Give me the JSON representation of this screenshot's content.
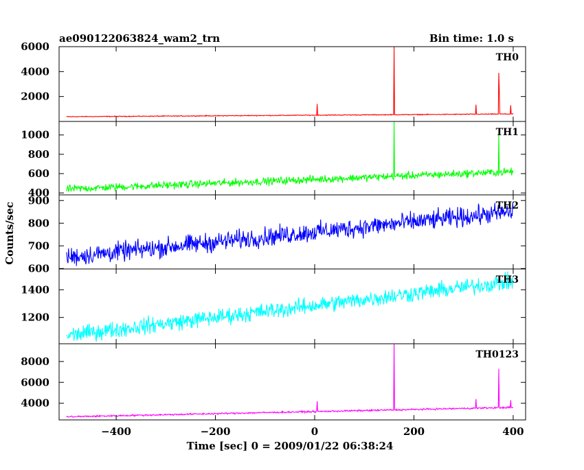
{
  "header": {
    "title": "ae090122063824_wam2_trn",
    "bin_time": "Bin time: 1.0 s"
  },
  "chart_data": {
    "type": "line",
    "xlabel": "Time [sec] 0 = 2009/01/22 06:38:24",
    "ylabel": "Counts/sec",
    "xlim": [
      -515,
      425
    ],
    "xticks": [
      -400,
      -200,
      0,
      200,
      400
    ],
    "xtick_labels": [
      "−400",
      "−200",
      "0",
      "200",
      "400"
    ],
    "x_range": [
      -500,
      400
    ],
    "panels": [
      {
        "name": "TH0",
        "color": "#ff0000",
        "ylim": [
          0,
          6000
        ],
        "yticks": [
          2000,
          4000,
          6000
        ],
        "ytick_labels": [
          "2000",
          "4000",
          "6000"
        ],
        "baseline_start": 380,
        "baseline_end": 600,
        "noise": 25,
        "spikes": [
          {
            "x": 5,
            "y": 1400
          },
          {
            "x": 160,
            "y": 6000
          },
          {
            "x": 325,
            "y": 1350
          },
          {
            "x": 371,
            "y": 3900
          },
          {
            "x": 372,
            "y": 2500
          },
          {
            "x": 395,
            "y": 1300
          }
        ]
      },
      {
        "name": "TH1",
        "color": "#00ff00",
        "ylim": [
          380,
          1140
        ],
        "yticks": [
          400,
          600,
          800,
          1000
        ],
        "ytick_labels": [
          "400",
          "600",
          "800",
          "1000"
        ],
        "baseline_start": 440,
        "baseline_end": 620,
        "noise": 30,
        "spikes": [
          {
            "x": 160,
            "y": 1140
          },
          {
            "x": 371,
            "y": 1000
          }
        ]
      },
      {
        "name": "TH2",
        "color": "#0000ff",
        "ylim": [
          598,
          925
        ],
        "yticks": [
          600,
          700,
          800,
          900
        ],
        "ytick_labels": [
          "600",
          "700",
          "800",
          "900"
        ],
        "baseline_start": 650,
        "baseline_end": 850,
        "noise": 32,
        "spikes": []
      },
      {
        "name": "TH3",
        "color": "#00ffff",
        "ylim": [
          1010,
          1550
        ],
        "yticks": [
          1200,
          1400
        ],
        "ytick_labels": [
          "1200",
          "1400"
        ],
        "baseline_start": 1070,
        "baseline_end": 1460,
        "noise": 45,
        "spikes": []
      },
      {
        "name": "TH0123",
        "color": "#ff00ff",
        "ylim": [
          2400,
          9700
        ],
        "yticks": [
          4000,
          6000,
          8000
        ],
        "ytick_labels": [
          "4000",
          "6000",
          "8000"
        ],
        "baseline_start": 2700,
        "baseline_end": 3600,
        "noise": 60,
        "spikes": [
          {
            "x": 5,
            "y": 4200
          },
          {
            "x": 160,
            "y": 9700
          },
          {
            "x": 325,
            "y": 4400
          },
          {
            "x": 371,
            "y": 7300
          },
          {
            "x": 395,
            "y": 4300
          }
        ]
      }
    ]
  }
}
